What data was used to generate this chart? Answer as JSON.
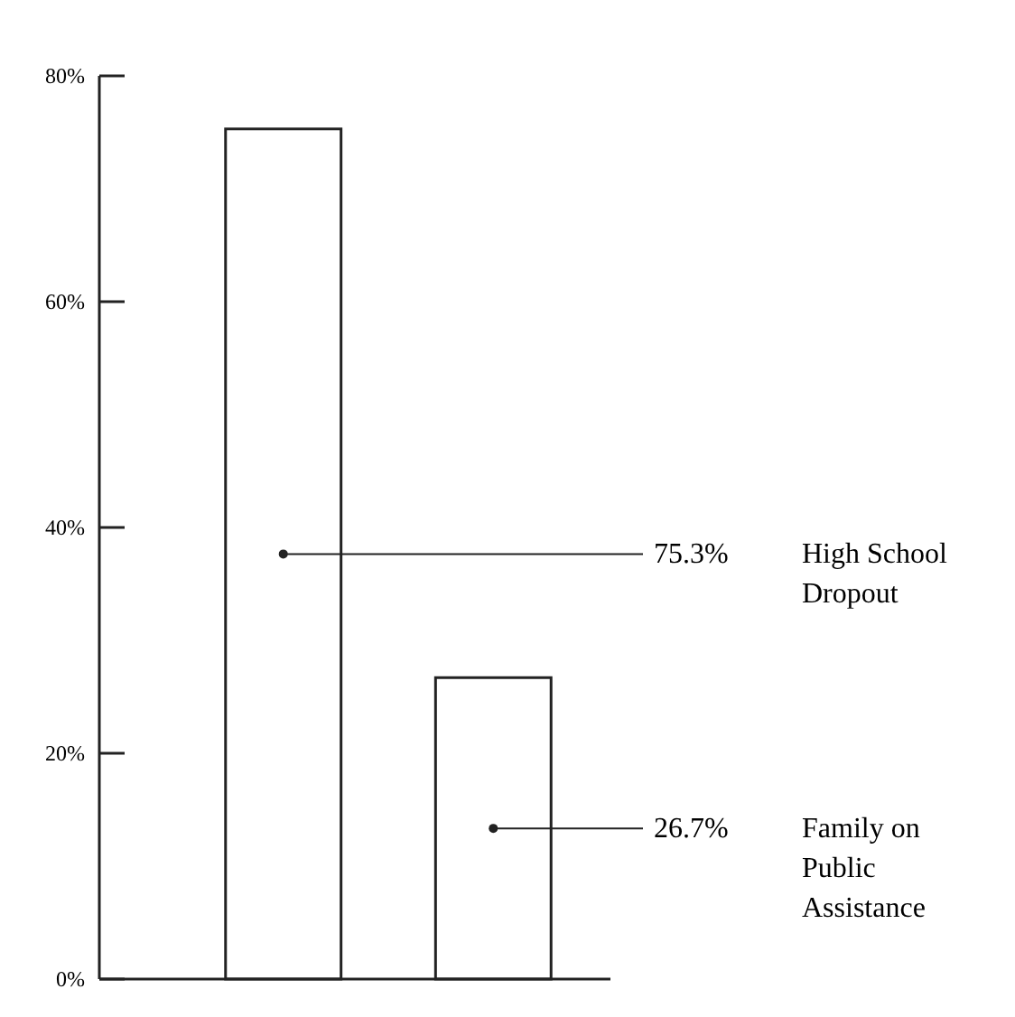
{
  "chart_data": {
    "type": "bar",
    "categories": [
      null,
      null
    ],
    "annotations": [
      "High School Dropout",
      "Family on Public Assistance"
    ],
    "values": [
      75.3,
      26.7
    ],
    "color": "#ffffff",
    "value_labels": [
      "75.3%",
      "26.7%"
    ],
    "ylim": [
      0,
      80
    ],
    "yticks": [
      {
        "value": 0,
        "label": "0%"
      },
      {
        "value": 20,
        "label": "20%"
      },
      {
        "value": 40,
        "label": "40%"
      },
      {
        "value": 60,
        "label": "60%"
      },
      {
        "value": 80,
        "label": "80%"
      }
    ],
    "tick_labels": "y",
    "grid": false
  }
}
